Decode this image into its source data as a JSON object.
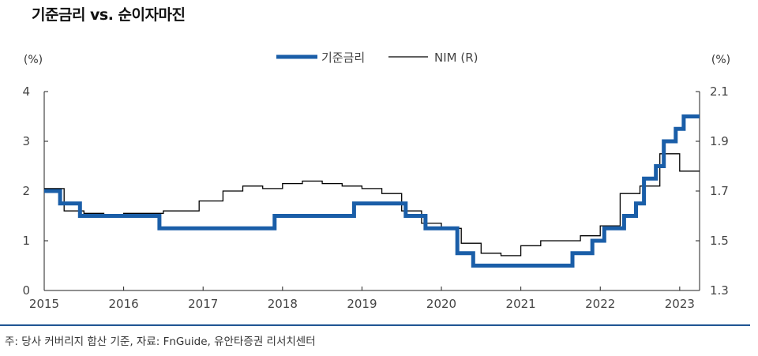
{
  "title": "기준금리 vs. 순이자마진",
  "source_note": "주: 당사 커버리지 합산 기준, 자료: FnGuide, 유안타증권 리서치센터",
  "colors": {
    "base_rate": "#1a5ea8",
    "nim": "#000000",
    "axis": "#222222",
    "rule": "#1f5593"
  },
  "chart_data": {
    "type": "line",
    "legend_position": "top-center",
    "grid": false,
    "left_axis": {
      "unit": "(%)",
      "ylim": [
        0,
        4
      ],
      "ticks": [
        "0",
        "1",
        "2",
        "3",
        "4"
      ]
    },
    "right_axis": {
      "unit": "(%)",
      "ylim": [
        1.3,
        2.1
      ],
      "ticks": [
        "1.3",
        "1.5",
        "1.7",
        "1.9",
        "2.1"
      ]
    },
    "x_axis": {
      "xlim": [
        2015.0,
        2023.25
      ],
      "ticks": [
        "2015",
        "2016",
        "2017",
        "2018",
        "2019",
        "2020",
        "2021",
        "2022",
        "2023"
      ]
    },
    "series": [
      {
        "name": "기준금리",
        "axis": "left",
        "step": true,
        "x": [
          2015.0,
          2015.2,
          2015.45,
          2016.45,
          2017.9,
          2018.9,
          2019.55,
          2019.8,
          2020.2,
          2020.4,
          2021.65,
          2021.9,
          2022.05,
          2022.3,
          2022.45,
          2022.55,
          2022.7,
          2022.8,
          2022.95,
          2023.05,
          2023.25
        ],
        "values": [
          2.0,
          1.75,
          1.5,
          1.25,
          1.5,
          1.75,
          1.5,
          1.25,
          0.75,
          0.5,
          0.75,
          1.0,
          1.25,
          1.5,
          1.75,
          2.25,
          2.5,
          3.0,
          3.25,
          3.5,
          3.5
        ]
      },
      {
        "name": "NIM (R)",
        "axis": "right",
        "step": true,
        "x": [
          2015.0,
          2015.25,
          2015.5,
          2015.75,
          2016.0,
          2016.5,
          2016.95,
          2017.25,
          2017.5,
          2017.75,
          2018.0,
          2018.25,
          2018.5,
          2018.75,
          2019.0,
          2019.25,
          2019.5,
          2019.75,
          2020.0,
          2020.25,
          2020.5,
          2020.75,
          2021.0,
          2021.25,
          2021.5,
          2021.75,
          2022.0,
          2022.25,
          2022.5,
          2022.75,
          2023.0,
          2023.25
        ],
        "values": [
          1.71,
          1.62,
          1.61,
          1.6,
          1.61,
          1.62,
          1.66,
          1.7,
          1.72,
          1.71,
          1.73,
          1.74,
          1.73,
          1.72,
          1.71,
          1.69,
          1.62,
          1.57,
          1.55,
          1.49,
          1.45,
          1.44,
          1.48,
          1.5,
          1.5,
          1.52,
          1.56,
          1.69,
          1.72,
          1.85,
          1.78,
          1.78
        ]
      }
    ]
  }
}
